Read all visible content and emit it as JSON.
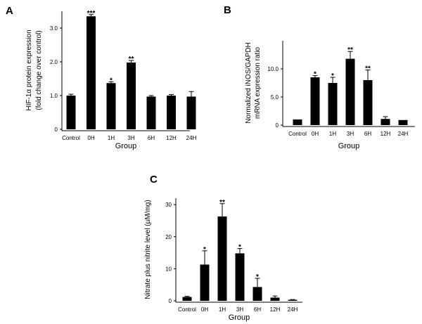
{
  "chart_data": [
    {
      "type": "bar",
      "panel": "A",
      "categories": [
        "Control",
        "0H",
        "1H",
        "3H",
        "6H",
        "12H",
        "24H"
      ],
      "values": [
        1.0,
        3.35,
        1.37,
        1.98,
        0.97,
        1.0,
        0.97
      ],
      "errors": [
        0.04,
        0.05,
        0.04,
        0.06,
        0.03,
        0.03,
        0.15
      ],
      "significance": [
        "",
        "***",
        "*",
        "**",
        "",
        "",
        ""
      ],
      "xlabel": "Group",
      "ylabel": [
        "HIF-1α protein expression",
        "(fold change over control)"
      ],
      "ylim": [
        0,
        3.5
      ],
      "yticks": [
        0,
        1.0,
        2.0,
        3.0
      ],
      "ytick_labels": [
        "0",
        "1.0",
        "2.0",
        "3.0"
      ]
    },
    {
      "type": "bar",
      "panel": "B",
      "categories": [
        "Control",
        "0H",
        "1H",
        "3H",
        "6H",
        "12H",
        "24H"
      ],
      "values": [
        1.0,
        8.5,
        7.5,
        11.8,
        8.0,
        1.1,
        0.9
      ],
      "errors": [
        0.0,
        0.3,
        1.0,
        1.3,
        1.8,
        0.4,
        0.0
      ],
      "significance": [
        "",
        "*",
        "*",
        "**",
        "**",
        "",
        ""
      ],
      "xlabel": "Group",
      "ylabel": [
        "Normalized iNOS/GAPDH",
        "mRNA expression ratio"
      ],
      "ylim": [
        0,
        15
      ],
      "yticks": [
        0,
        5,
        10
      ],
      "ytick_labels": [
        "0",
        "5.0",
        "10.0"
      ]
    },
    {
      "type": "bar",
      "panel": "C",
      "categories": [
        "Control",
        "0H",
        "1H",
        "3H",
        "6H",
        "12H",
        "24H"
      ],
      "values": [
        1.2,
        11.3,
        26.3,
        14.8,
        4.3,
        1.0,
        0.3
      ],
      "errors": [
        0.2,
        4.3,
        4.0,
        1.5,
        2.7,
        0.5,
        0.1
      ],
      "significance": [
        "",
        "*",
        "**",
        "*",
        "*",
        "",
        ""
      ],
      "xlabel": "Group",
      "ylabel": [
        "Nitrate plus nitrite level (µM/mg)"
      ],
      "ylim": [
        0,
        32
      ],
      "yticks": [
        0,
        10,
        20,
        30
      ],
      "ytick_labels": [
        "0",
        "10",
        "20",
        "30"
      ]
    }
  ]
}
